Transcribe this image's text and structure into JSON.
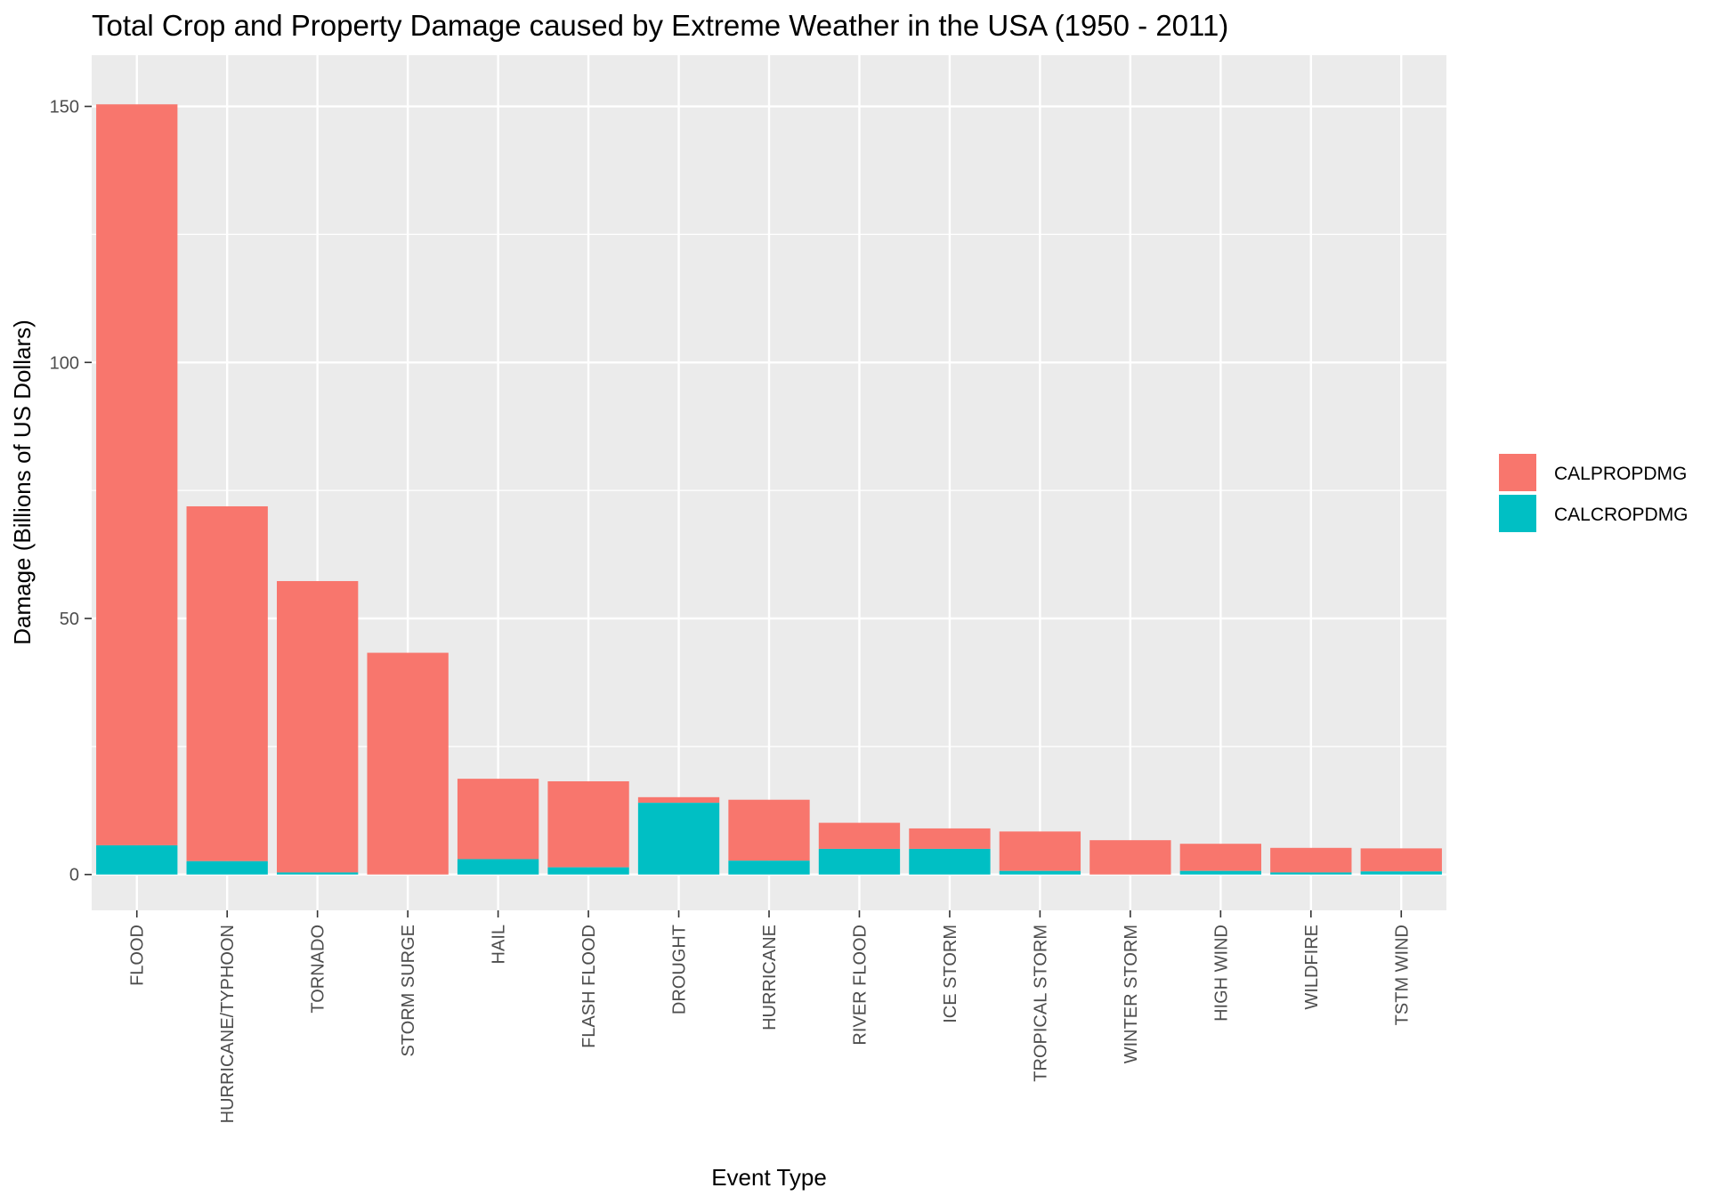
{
  "chart_data": {
    "type": "bar",
    "stacked": true,
    "title": "Total Crop and Property Damage caused by Extreme Weather in the USA (1950 - 2011)",
    "xlabel": "Event Type",
    "ylabel": "Damage (Billions of US Dollars)",
    "ylim": [
      -7,
      160
    ],
    "yticks": [
      0,
      50,
      100,
      150
    ],
    "tick_labels": [
      "0",
      "50",
      "100",
      "150"
    ],
    "categories": [
      "FLOOD",
      "HURRICANE/TYPHOON",
      "TORNADO",
      "STORM SURGE",
      "HAIL",
      "FLASH FLOOD",
      "DROUGHT",
      "HURRICANE",
      "RIVER FLOOD",
      "ICE STORM",
      "TROPICAL STORM",
      "WINTER STORM",
      "HIGH WIND",
      "WILDFIRE",
      "TSTM WIND"
    ],
    "series": [
      {
        "name": "CALPROPDMG",
        "color": "#F8766D",
        "values": [
          144.7,
          69.3,
          56.9,
          43.3,
          15.7,
          16.8,
          1.1,
          11.9,
          5.1,
          4.0,
          7.7,
          6.7,
          5.3,
          4.8,
          4.5
        ]
      },
      {
        "name": "CALCROPDMG",
        "color": "#00BFC4",
        "values": [
          5.7,
          2.6,
          0.4,
          0.0,
          3.0,
          1.4,
          14.0,
          2.7,
          5.0,
          5.0,
          0.7,
          0.0,
          0.7,
          0.4,
          0.6
        ]
      }
    ],
    "grid": true,
    "legend_position": "right",
    "panel_color": "#EBEBEB",
    "grid_color": "#FFFFFF"
  }
}
